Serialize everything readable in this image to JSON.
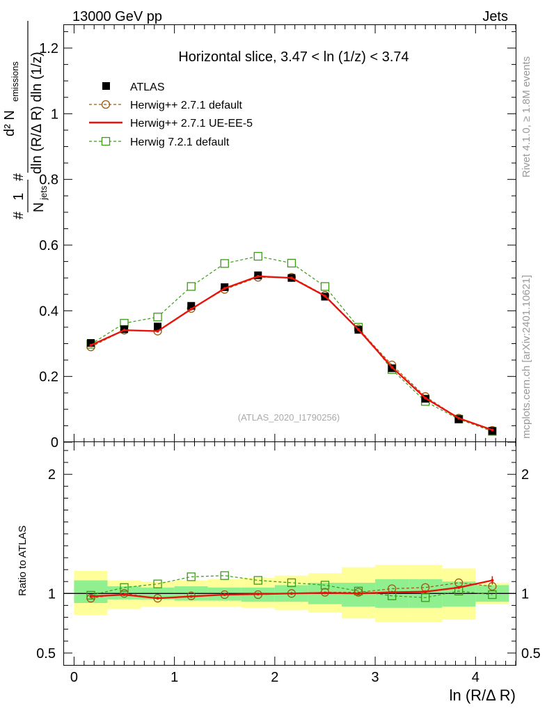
{
  "header": {
    "left": "13000 GeV pp",
    "right": "Jets"
  },
  "side_labels": {
    "top": "Rivet 4.1.0, ≥ 1.8M events",
    "bottom": "mcplots.cern.ch [arXiv:2401.10621]"
  },
  "watermark": "(ATLAS_2020_I1790256)",
  "chart_data": {
    "type": "line",
    "title": "Horizontal slice, 3.47 < ln (1/z) < 3.74",
    "xlabel": "ln (R/Δ R)",
    "ylabel": {
      "frac_num": "1",
      "frac_den": "N",
      "frac_den_sub": "jets",
      "hash1": "#",
      "hash2": "#",
      "deriv_num": "d² N",
      "deriv_num_sub": "emissions",
      "deriv_den": "dln (R/Δ R) dln (1/z)"
    },
    "ratio_ylabel": "Ratio to ATLAS",
    "xlim": [
      -0.1,
      4.4
    ],
    "ylim_main": [
      0,
      1.27
    ],
    "ylim_ratio": [
      0.4,
      2.27
    ],
    "x_ticks": [
      "0",
      "1",
      "2",
      "3",
      "4"
    ],
    "y_ticks_main": [
      "0",
      "0.2",
      "0.4",
      "0.6",
      "0.8",
      "1",
      "1.2"
    ],
    "y_ticks_ratio": [
      "0.5",
      "1",
      "2"
    ],
    "x": [
      0.167,
      0.5,
      0.833,
      1.167,
      1.5,
      1.833,
      2.167,
      2.5,
      2.833,
      3.167,
      3.5,
      3.833,
      4.167
    ],
    "bin_edges": [
      0,
      0.333,
      0.667,
      1.0,
      1.333,
      1.667,
      2.0,
      2.333,
      2.667,
      3.0,
      3.333,
      3.667,
      4.0,
      4.333
    ],
    "series": [
      {
        "name": "ATLAS",
        "style": "data",
        "color": "#000000",
        "values": [
          0.302,
          0.344,
          0.352,
          0.415,
          0.472,
          0.508,
          0.5,
          0.443,
          0.342,
          0.225,
          0.132,
          0.07,
          0.034
        ]
      },
      {
        "name": "Herwig++ 2.7.1 default",
        "style": "dashed-circle",
        "color": "#9a5a14",
        "values": [
          0.29,
          0.341,
          0.338,
          0.407,
          0.465,
          0.502,
          0.502,
          0.447,
          0.345,
          0.235,
          0.139,
          0.073,
          0.036
        ]
      },
      {
        "name": "Herwig++ 2.7.1 UE-EE-5",
        "style": "solid",
        "color": "#e8140c",
        "values": [
          0.295,
          0.341,
          0.338,
          0.405,
          0.468,
          0.505,
          0.5,
          0.445,
          0.343,
          0.228,
          0.134,
          0.073,
          0.037
        ]
      },
      {
        "name": "Herwig 7.2.1 default",
        "style": "dashed-square",
        "color": "#3a9a14",
        "values": [
          0.298,
          0.362,
          0.381,
          0.474,
          0.544,
          0.566,
          0.545,
          0.474,
          0.35,
          0.221,
          0.124,
          0.07,
          0.033
        ]
      }
    ],
    "ratio": {
      "band_inner": [
        [
          0.92,
          1.11
        ],
        [
          0.95,
          1.06
        ],
        [
          0.95,
          1.05
        ],
        [
          0.94,
          1.06
        ],
        [
          0.94,
          1.05
        ],
        [
          0.93,
          1.05
        ],
        [
          0.93,
          1.07
        ],
        [
          0.91,
          1.09
        ],
        [
          0.89,
          1.09
        ],
        [
          0.88,
          1.12
        ],
        [
          0.88,
          1.12
        ],
        [
          0.89,
          1.1
        ],
        [
          0.93,
          1.07
        ]
      ],
      "band_outer": [
        [
          0.82,
          1.19
        ],
        [
          0.87,
          1.11
        ],
        [
          0.89,
          1.1
        ],
        [
          0.89,
          1.11
        ],
        [
          0.89,
          1.12
        ],
        [
          0.88,
          1.13
        ],
        [
          0.86,
          1.15
        ],
        [
          0.84,
          1.17
        ],
        [
          0.79,
          1.22
        ],
        [
          0.76,
          1.24
        ],
        [
          0.76,
          1.24
        ],
        [
          0.78,
          1.21
        ],
        [
          0.91,
          1.09
        ]
      ],
      "series": [
        {
          "name": "Herwig++ 2.7.1 default",
          "values": [
            0.96,
            1.0,
            0.96,
            0.98,
            0.99,
            0.99,
            1.0,
            1.01,
            1.01,
            1.04,
            1.05,
            1.09,
            1.06
          ]
        },
        {
          "name": "Herwig++ 2.7.1 UE-EE-5",
          "values": [
            0.975,
            0.99,
            0.96,
            0.975,
            0.99,
            0.995,
            1.0,
            1.005,
            1.0,
            1.01,
            1.015,
            1.05,
            1.11
          ]
        },
        {
          "name": "Herwig 7.2.1 default",
          "values": [
            0.985,
            1.05,
            1.08,
            1.14,
            1.15,
            1.11,
            1.09,
            1.07,
            1.02,
            0.98,
            0.965,
            1.02,
            0.99
          ]
        }
      ]
    }
  }
}
